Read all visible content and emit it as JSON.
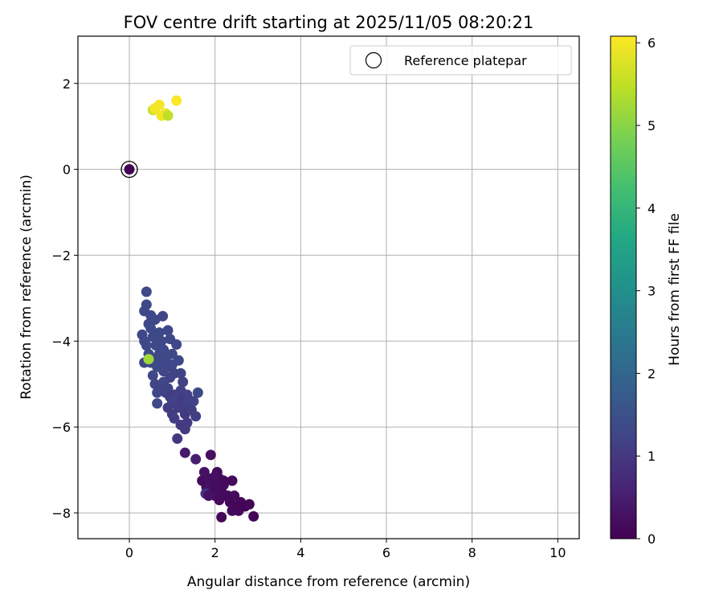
{
  "chart_data": {
    "type": "scatter",
    "title": "FOV centre drift starting at 2025/11/05 08:20:21",
    "xlabel": "Angular distance from reference (arcmin)",
    "ylabel": "Rotation from reference (arcmin)",
    "xlim": [
      -1.2,
      10.5
    ],
    "ylim": [
      -8.6,
      3.1
    ],
    "xticks": [
      "0",
      "2",
      "4",
      "6",
      "8",
      "10"
    ],
    "xtick_values": [
      0,
      2,
      4,
      6,
      8,
      10
    ],
    "yticks": [
      "2",
      "0",
      "−2",
      "−4",
      "−6",
      "−8"
    ],
    "ytick_values": [
      2,
      0,
      -2,
      -4,
      -6,
      -8
    ],
    "grid": true,
    "legend": {
      "position": "top-right",
      "entries": [
        "Reference platepar"
      ]
    },
    "colorbar": {
      "label": "Hours from first FF file",
      "colormap": "viridis",
      "range": [
        0,
        6.08
      ],
      "ticks": [
        "0",
        "1",
        "2",
        "3",
        "4",
        "5",
        "6"
      ],
      "tick_values": [
        0,
        1,
        2,
        3,
        4,
        5,
        6
      ]
    },
    "reference_point": {
      "x": 0,
      "y": 0
    },
    "points": [
      [
        0,
        0,
        0.02
      ],
      [
        0.55,
        1.38,
        5.6
      ],
      [
        0.7,
        1.5,
        6.0
      ],
      [
        0.85,
        1.3,
        5.9
      ],
      [
        1.1,
        1.6,
        6.05
      ],
      [
        0.75,
        1.25,
        6.0
      ],
      [
        0.9,
        1.25,
        5.5
      ],
      [
        0.6,
        1.42,
        6.0
      ],
      [
        0.4,
        -2.85,
        1.35
      ],
      [
        0.4,
        -3.15,
        1.3
      ],
      [
        0.35,
        -3.3,
        1.35
      ],
      [
        0.5,
        -3.4,
        1.3
      ],
      [
        0.6,
        -3.5,
        1.3
      ],
      [
        0.78,
        -3.42,
        1.25
      ],
      [
        0.45,
        -3.6,
        1.3
      ],
      [
        0.3,
        -3.85,
        1.3
      ],
      [
        0.35,
        -4.0,
        1.3
      ],
      [
        0.5,
        -3.7,
        1.35
      ],
      [
        0.55,
        -3.9,
        1.3
      ],
      [
        0.62,
        -4.1,
        1.4
      ],
      [
        0.7,
        -3.8,
        1.35
      ],
      [
        0.75,
        -4.0,
        1.3
      ],
      [
        0.8,
        -4.2,
        1.3
      ],
      [
        0.9,
        -3.75,
        1.25
      ],
      [
        0.95,
        -3.95,
        1.3
      ],
      [
        1.0,
        -4.3,
        1.3
      ],
      [
        1.1,
        -4.08,
        1.25
      ],
      [
        0.4,
        -4.1,
        1.3
      ],
      [
        0.45,
        -4.3,
        1.35
      ],
      [
        0.5,
        -4.5,
        1.3
      ],
      [
        0.6,
        -4.4,
        1.3
      ],
      [
        0.65,
        -4.6,
        1.4
      ],
      [
        0.35,
        -4.5,
        1.25
      ],
      [
        0.7,
        -4.3,
        1.3
      ],
      [
        0.75,
        -4.5,
        1.35
      ],
      [
        0.8,
        -4.7,
        1.25
      ],
      [
        0.85,
        -4.4,
        1.3
      ],
      [
        0.9,
        -4.6,
        1.25
      ],
      [
        0.95,
        -4.85,
        1.2
      ],
      [
        1.0,
        -4.55,
        1.3
      ],
      [
        1.05,
        -4.75,
        1.2
      ],
      [
        1.15,
        -4.45,
        1.25
      ],
      [
        1.2,
        -4.75,
        1.2
      ],
      [
        1.25,
        -4.95,
        1.15
      ],
      [
        0.55,
        -4.8,
        1.3
      ],
      [
        0.6,
        -5.0,
        1.25
      ],
      [
        0.65,
        -5.2,
        1.3
      ],
      [
        0.7,
        -5.05,
        1.2
      ],
      [
        0.8,
        -4.95,
        1.25
      ],
      [
        0.85,
        -5.2,
        1.15
      ],
      [
        0.9,
        -5.1,
        1.2
      ],
      [
        0.95,
        -5.3,
        1.1
      ],
      [
        1.0,
        -5.45,
        1.15
      ],
      [
        1.05,
        -5.25,
        1.1
      ],
      [
        1.1,
        -5.35,
        1.2
      ],
      [
        1.15,
        -5.55,
        1.1
      ],
      [
        1.2,
        -5.15,
        1.15
      ],
      [
        1.25,
        -5.35,
        1.05
      ],
      [
        1.3,
        -5.5,
        1.1
      ],
      [
        1.35,
        -5.25,
        1.15
      ],
      [
        1.4,
        -5.45,
        1.2
      ],
      [
        0.65,
        -5.45,
        1.3
      ],
      [
        0.9,
        -5.55,
        1.1
      ],
      [
        1.0,
        -5.7,
        1.05
      ],
      [
        1.3,
        -5.7,
        1.0
      ],
      [
        1.35,
        -5.9,
        1.05
      ],
      [
        1.3,
        -6.05,
        1.05
      ],
      [
        1.45,
        -5.6,
        1.1
      ],
      [
        1.55,
        -5.75,
        1.1
      ],
      [
        1.6,
        -5.2,
        1.3
      ],
      [
        1.5,
        -5.4,
        1.2
      ],
      [
        1.12,
        -6.27,
        0.95
      ],
      [
        1.2,
        -5.95,
        1.05
      ],
      [
        1.05,
        -5.8,
        1.1
      ],
      [
        0.45,
        -4.42,
        5.2
      ],
      [
        1.3,
        -6.6,
        0.45
      ],
      [
        1.55,
        -6.75,
        0.5
      ],
      [
        1.9,
        -6.65,
        0.25
      ],
      [
        1.75,
        -7.05,
        0.3
      ],
      [
        1.7,
        -7.25,
        0.2
      ],
      [
        1.85,
        -7.2,
        0.25
      ],
      [
        1.8,
        -7.4,
        0.2
      ],
      [
        1.9,
        -7.35,
        0.3
      ],
      [
        2.0,
        -7.3,
        0.2
      ],
      [
        2.05,
        -7.05,
        0.15
      ],
      [
        2.1,
        -7.2,
        0.2
      ],
      [
        2.15,
        -7.5,
        0.15
      ],
      [
        1.95,
        -7.5,
        0.2
      ],
      [
        2.0,
        -7.6,
        0.25
      ],
      [
        1.78,
        -7.55,
        0.85
      ],
      [
        2.1,
        -7.7,
        0.15
      ],
      [
        2.2,
        -7.35,
        0.2
      ],
      [
        2.3,
        -7.6,
        0.1
      ],
      [
        2.4,
        -7.25,
        0.15
      ],
      [
        2.35,
        -7.75,
        0.1
      ],
      [
        2.45,
        -7.6,
        0.15
      ],
      [
        2.5,
        -7.85,
        0.1
      ],
      [
        2.4,
        -7.95,
        0.15
      ],
      [
        2.6,
        -7.75,
        0.1
      ],
      [
        2.7,
        -7.85,
        0.05
      ],
      [
        2.8,
        -7.8,
        0.1
      ],
      [
        2.55,
        -7.95,
        0.1
      ],
      [
        2.9,
        -8.08,
        0.05
      ],
      [
        2.15,
        -8.1,
        0.1
      ],
      [
        2.25,
        -7.6,
        0.15
      ],
      [
        2.05,
        -7.4,
        0.2
      ],
      [
        1.85,
        -7.6,
        0.3
      ],
      [
        2.0,
        -7.15,
        0.25
      ],
      [
        2.2,
        -7.25,
        0.15
      ]
    ]
  }
}
